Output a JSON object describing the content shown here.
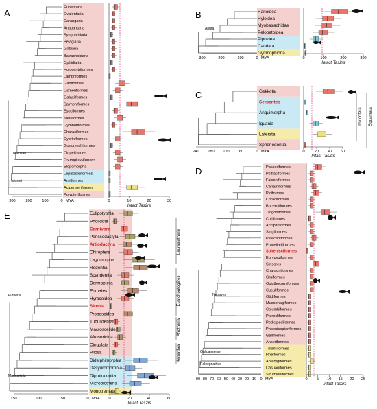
{
  "colors": {
    "pink": "#f2c9c6",
    "pink_strong": "#f4a49c",
    "blue": "#bfe6f2",
    "yellow": "#f6e89c",
    "box_red": "#e8766a",
    "box_brown": "#b9896a",
    "box_olive": "#a6a166",
    "box_blue": "#7fa8d6",
    "box_teal": "#7cc6d6",
    "box_yellow": "#ede27a",
    "highlight_text": "#cc2222",
    "median_line": "#e0447a"
  },
  "common": {
    "mya": "MYA",
    "intact": "Intact Tas2rs"
  },
  "panels": {
    "A": {
      "letter": "A",
      "taxa": [
        "Eupercaria",
        "Ovalentaria",
        "Carangaria",
        "Anabantaria",
        "Syngnathiaria",
        "Pelagiaria",
        "Gobiaria",
        "Batrachoidaria",
        "Ophidiaria",
        "Holocentriformes",
        "Lampriformes",
        "Gadiformes",
        "Osmeriformes",
        "Galaxiiformes",
        "Salmoniformes",
        "Esociformes",
        "Siluriformes",
        "Gymnotiformes",
        "Characiformes",
        "Cypriniformes",
        "Gonorynchiformes",
        "Clupeiformes",
        "Osteoglossiformes",
        "Elopomorpha",
        "Lepisosteiformes",
        "Amiiformes",
        "Acipenseriformes",
        "Polypteriformes"
      ],
      "clade_labels": [
        "Teleostei",
        "Holostei"
      ],
      "mya_ticks": [
        "300",
        "200",
        "100",
        "0"
      ],
      "count_ticks": [
        "0",
        "10",
        "20",
        "30"
      ]
    },
    "B": {
      "letter": "B",
      "taxa": [
        "Ranoidea",
        "Hyloidea",
        "Myobatrachidae",
        "Pelobatoidea",
        "Pipoidea",
        "Caudata",
        "Gymnophiona"
      ],
      "clade_labels": [
        "Anura"
      ],
      "mya_ticks": [
        "300",
        "200",
        "100",
        "0"
      ],
      "count_ticks": [
        "0",
        "100",
        "200",
        "300"
      ]
    },
    "C": {
      "letter": "C",
      "taxa": [
        "Gekkota",
        "Serpentes",
        "Anguimorpha",
        "Iguania",
        "Laterata",
        "Sphenodontia"
      ],
      "highlight": [
        "Serpentes"
      ],
      "side_labels": [
        "Toxicofera",
        "Squamata"
      ],
      "mya_ticks": [
        "240",
        "180",
        "120",
        "60",
        "0"
      ],
      "count_ticks": [
        "0",
        "20",
        "40",
        "60"
      ]
    },
    "D": {
      "letter": "D",
      "taxa": [
        "Passeriformes",
        "Psittaciformes",
        "Falconiformes",
        "Cariamiformes",
        "Piciformes",
        "Coraciformes",
        "Bucerotiformes",
        "Trogoniformes",
        "Coliiformes",
        "Accipitriformes",
        "Strigiformes",
        "Pelecaniformes",
        "Procellariiformes",
        "Sphenisciformes",
        "Eurypygiformes",
        "Strisores",
        "Charadriiformes",
        "Gruiformes",
        "Opisthocomiformes",
        "Cuculiformes",
        "Otidiformes",
        "Musophagiformes",
        "Columbiformes",
        "Pterocliformes",
        "Podicipediformes",
        "Phoenicopteriformes",
        "Galliformes",
        "Anseriformes",
        "Tinamiformes",
        "Rheiformes",
        "Apterygiformes",
        "Casuariiformes",
        "Struthioniformes"
      ],
      "highlight": [
        "Sphenisciformes"
      ],
      "clade_labels": [
        "Neoaves",
        "Galloanserae",
        "Paleognathae"
      ],
      "mya_ticks": [
        "90",
        "80",
        "70",
        "60",
        "50",
        "40",
        "30",
        "20",
        "10",
        "0"
      ],
      "count_ticks": [
        "0",
        "5",
        "10",
        "15",
        "20",
        "25"
      ]
    },
    "E": {
      "letter": "E",
      "taxa": [
        "Eulipotyphla",
        "Pholidota",
        "Carnivora",
        "Perissodactyla",
        "Artiodactyla",
        "Chiroptera",
        "Lagomorpha",
        "Rodentia",
        "Scandentia",
        "Dermoptera",
        "Primates",
        "Hyracoidea",
        "Sirenia",
        "Proboscidea",
        "Tubulidentata",
        "Macroscelidea",
        "Afrosoricida",
        "Cingulata",
        "Pilosa",
        "Didelphimorphia",
        "Dasyuromorphia",
        "Diprotodontia",
        "Microbiotheria",
        "Monotremata"
      ],
      "highlight": [
        "Carnivora",
        "Artiodactyla",
        "Sirenia"
      ],
      "clade_labels": [
        "Eutheria",
        "Marsupialia"
      ],
      "side_labels": [
        "Laurasiatheria",
        "Euarchontoglires",
        "Afrotheria",
        "Xenarthra"
      ],
      "mya_ticks": [
        "150",
        "100",
        "50",
        "0"
      ],
      "count_ticks": [
        "0",
        "20",
        "40",
        "60"
      ]
    }
  },
  "chart_data": [
    {
      "panel": "A",
      "type": "box",
      "orientation": "horizontal",
      "xlabel": "Intact Tas2rs",
      "xlim": [
        0,
        30
      ],
      "series": [
        {
          "categories": [
            "Eupercaria",
            "Ovalentaria",
            "Carangaria",
            "Anabantaria",
            "Syngnathiaria",
            "Pelagiaria",
            "Gobiaria",
            "Batrachoidaria",
            "Ophidiaria",
            "Holocentriformes",
            "Lampriformes",
            "Gadiformes",
            "Osmeriformes",
            "Galaxiiformes",
            "Salmoniformes",
            "Esociformes",
            "Siluriformes",
            "Gymnotiformes",
            "Characiformes",
            "Cypriniformes",
            "Gonorynchiformes",
            "Clupeiformes",
            "Osteoglossiformes",
            "Elopomorpha",
            "Lepisosteiformes",
            "Amiiformes",
            "Acipenseriformes",
            "Polypteriformes"
          ],
          "medians": [
            3,
            2,
            2,
            2,
            1,
            2,
            2,
            2,
            1,
            2,
            0,
            6,
            4,
            1,
            11,
            3,
            5,
            2,
            14,
            4,
            1,
            4,
            5,
            4,
            0,
            0,
            11,
            0
          ]
        }
      ]
    },
    {
      "panel": "B",
      "type": "box",
      "orientation": "horizontal",
      "xlabel": "Intact Tas2rs",
      "xlim": [
        0,
        300
      ],
      "series": [
        {
          "categories": [
            "Ranoidea",
            "Hyloidea",
            "Myobatrachidae",
            "Pelobatoidea",
            "Pipoidea",
            "Caudata",
            "Gymnophiona"
          ],
          "medians": [
            175,
            120,
            115,
            95,
            60,
            5,
            8
          ]
        }
      ]
    },
    {
      "panel": "C",
      "type": "box",
      "orientation": "horizontal",
      "xlabel": "Intact Tas2rs",
      "xlim": [
        0,
        60
      ],
      "series": [
        {
          "categories": [
            "Gekkota",
            "Serpentes",
            "Anguimorpha",
            "Iguania",
            "Laterata",
            "Sphenodontia"
          ],
          "medians": [
            37,
            1,
            5,
            18,
            27,
            1
          ]
        }
      ]
    },
    {
      "panel": "D",
      "type": "box",
      "orientation": "horizontal",
      "xlabel": "Intact Tas2rs",
      "xlim": [
        0,
        25
      ],
      "series": [
        {
          "categories": [
            "Passeriformes",
            "Psittaciformes",
            "Falconiformes",
            "Cariamiformes",
            "Piciformes",
            "Coraciformes",
            "Bucerotiformes",
            "Trogoniformes",
            "Coliiformes",
            "Accipitriformes",
            "Strigiformes",
            "Pelecaniformes",
            "Procellariiformes",
            "Sphenisciformes",
            "Eurypygiformes",
            "Strisores",
            "Charadriiformes",
            "Gruiformes",
            "Opisthocomiformes",
            "Cuculiformes",
            "Otidiformes",
            "Musophagiformes",
            "Columbiformes",
            "Pterocliformes",
            "Podicipediformes",
            "Phoenicopteriformes",
            "Galliformes",
            "Anseriformes",
            "Tinamiformes",
            "Rheiformes",
            "Apterygiformes",
            "Casuariiformes",
            "Struthioniformes"
          ],
          "medians": [
            5,
            2,
            2,
            3,
            4,
            2,
            2,
            8,
            1,
            2,
            2,
            3,
            2,
            0,
            2,
            4,
            2,
            2,
            2,
            2,
            1,
            1,
            1,
            1,
            1,
            1,
            1,
            1,
            1,
            1,
            2,
            1,
            1
          ]
        }
      ]
    },
    {
      "panel": "E",
      "type": "box",
      "orientation": "horizontal",
      "xlabel": "Intact Tas2rs",
      "xlim": [
        0,
        60
      ],
      "series": [
        {
          "categories": [
            "Eulipotyphla",
            "Pholidota",
            "Carnivora",
            "Perissodactyla",
            "Artiodactyla",
            "Chiroptera",
            "Lagomorpha",
            "Rodentia",
            "Scandentia",
            "Dermoptera",
            "Primates",
            "Hyracoidea",
            "Sirenia",
            "Proboscidea",
            "Tubulidentata",
            "Macroscelidea",
            "Afrosoricida",
            "Cingulata",
            "Pilosa",
            "Didelphimorphia",
            "Dasyuromorphia",
            "Diprotodontia",
            "Microbiotheria",
            "Monotremata"
          ],
          "medians": [
            18,
            5,
            14,
            20,
            17,
            18,
            28,
            30,
            15,
            15,
            23,
            15,
            1,
            18,
            6,
            8,
            10,
            6,
            4,
            30,
            20,
            35,
            25,
            7
          ]
        }
      ]
    }
  ]
}
